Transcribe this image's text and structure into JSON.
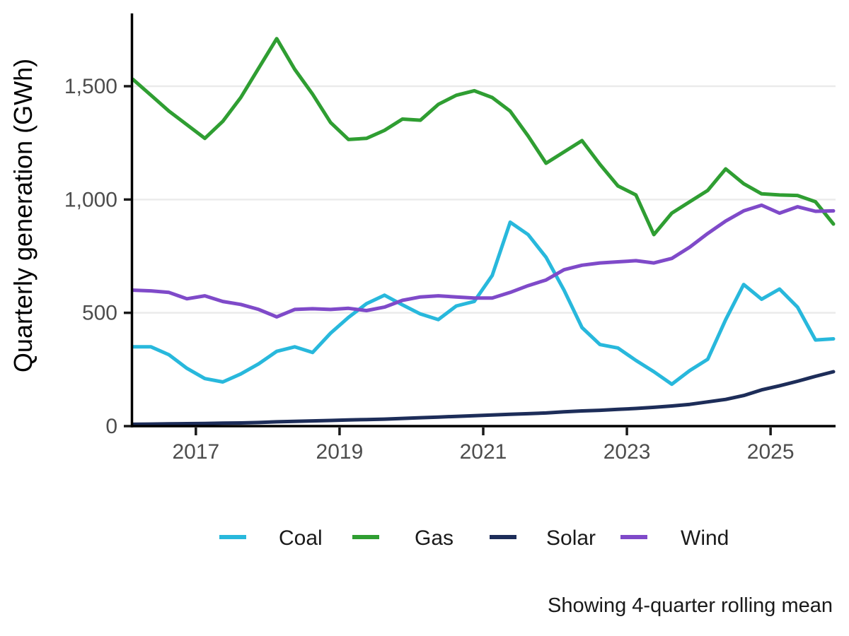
{
  "caption": "Showing 4-quarter rolling mean",
  "axes": {
    "y": {
      "title": "Quarterly generation (GWh)",
      "ticks": [
        {
          "label": "0",
          "value": 0
        },
        {
          "label": "500",
          "value": 500
        },
        {
          "label": "1,000",
          "value": 1000
        },
        {
          "label": "1,500",
          "value": 1500
        }
      ]
    },
    "x": {
      "ticks": [
        {
          "label": "2017",
          "year": 2017
        },
        {
          "label": "2019",
          "year": 2019
        },
        {
          "label": "2021",
          "year": 2021
        },
        {
          "label": "2023",
          "year": 2023
        },
        {
          "label": "2025",
          "year": 2025
        }
      ]
    }
  },
  "style": {
    "gridline_color": "#ebebeb",
    "spine_color": "#000000",
    "tick_color": "#1a1a1a",
    "background": "#ffffff"
  },
  "chart_data": {
    "type": "line",
    "title": "",
    "xlabel": "",
    "ylabel": "Quarterly generation (GWh)",
    "ylim": [
      0,
      1810
    ],
    "grid": "horizontal-only",
    "gridline_values": [
      500,
      1000,
      1500
    ],
    "legend_position": "bottom-center",
    "x_unit": "quarter (4-quarter rolling mean)",
    "x": [
      "2016 Q1",
      "2016 Q2",
      "2016 Q3",
      "2016 Q4",
      "2017 Q1",
      "2017 Q2",
      "2017 Q3",
      "2017 Q4",
      "2018 Q1",
      "2018 Q2",
      "2018 Q3",
      "2018 Q4",
      "2019 Q1",
      "2019 Q2",
      "2019 Q3",
      "2019 Q4",
      "2020 Q1",
      "2020 Q2",
      "2020 Q3",
      "2020 Q4",
      "2021 Q1",
      "2021 Q2",
      "2021 Q3",
      "2021 Q4",
      "2022 Q1",
      "2022 Q2",
      "2022 Q3",
      "2022 Q4",
      "2023 Q1",
      "2023 Q2",
      "2023 Q3",
      "2023 Q4",
      "2024 Q1",
      "2024 Q2",
      "2024 Q3",
      "2024 Q4",
      "2025 Q1",
      "2025 Q2",
      "2025 Q3",
      "2025 Q4"
    ],
    "series": [
      {
        "name": "Coal",
        "color": "#28b8dc",
        "values": [
          350,
          350,
          315,
          255,
          210,
          195,
          230,
          275,
          330,
          350,
          325,
          410,
          480,
          540,
          578,
          535,
          495,
          470,
          530,
          550,
          665,
          900,
          845,
          745,
          600,
          435,
          360,
          345,
          290,
          240,
          185,
          245,
          295,
          470,
          625,
          560,
          605,
          525,
          380,
          385
        ]
      },
      {
        "name": "Gas",
        "color": "#2f9e32",
        "values": [
          1530,
          1460,
          1390,
          1330,
          1270,
          1345,
          1450,
          1580,
          1710,
          1575,
          1465,
          1340,
          1265,
          1270,
          1305,
          1355,
          1350,
          1420,
          1460,
          1480,
          1450,
          1390,
          1280,
          1160,
          1210,
          1260,
          1155,
          1060,
          1020,
          845,
          940,
          990,
          1040,
          1135,
          1070,
          1025,
          1020,
          1018,
          990,
          892
        ]
      },
      {
        "name": "Solar",
        "color": "#1d2d59",
        "values": [
          8,
          9,
          10,
          11,
          12,
          13,
          14,
          16,
          19,
          21,
          23,
          25,
          27,
          29,
          31,
          34,
          37,
          40,
          43,
          46,
          49,
          52,
          55,
          58,
          63,
          67,
          70,
          74,
          78,
          83,
          89,
          96,
          107,
          118,
          135,
          160,
          178,
          198,
          220,
          240
        ]
      },
      {
        "name": "Wind",
        "color": "#7f4ac9",
        "values": [
          600,
          597,
          590,
          562,
          575,
          550,
          537,
          515,
          482,
          515,
          518,
          515,
          520,
          510,
          525,
          555,
          570,
          575,
          570,
          565,
          565,
          590,
          620,
          645,
          690,
          710,
          720,
          725,
          730,
          720,
          740,
          790,
          850,
          905,
          950,
          975,
          940,
          968,
          948,
          950
        ]
      }
    ]
  }
}
